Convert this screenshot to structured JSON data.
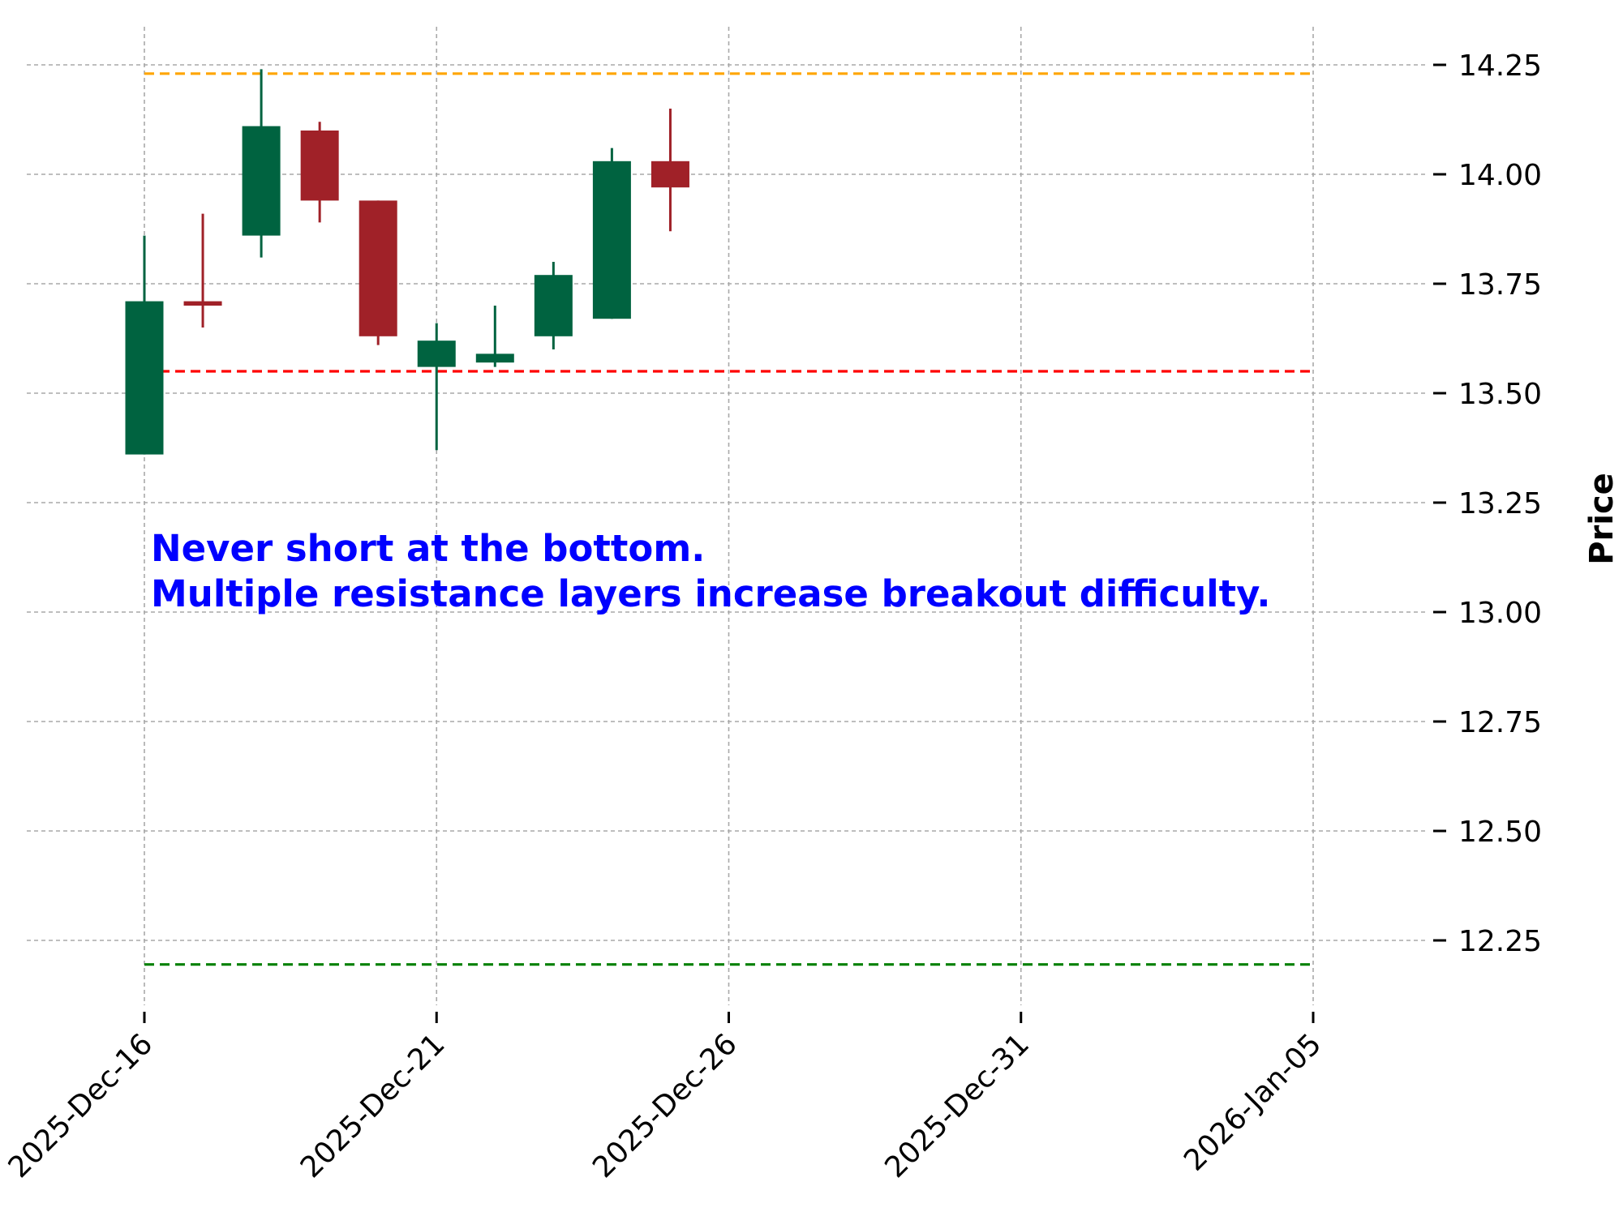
{
  "chart_data": {
    "type": "candlestick",
    "ylabel": "Price",
    "y_axis_side": "right",
    "ylim": [
      12.08,
      14.3
    ],
    "yticks": [
      12.25,
      12.5,
      12.75,
      13.0,
      13.25,
      13.5,
      13.75,
      14.0,
      14.25
    ],
    "ytick_labels": [
      "12.25",
      "12.50",
      "12.75",
      "13.00",
      "13.25",
      "13.50",
      "13.75",
      "14.00",
      "14.25"
    ],
    "x_dates_start": "2025-12-16",
    "x_dates_end": "2026-01-05",
    "x_domain": [
      "2025-12-16",
      "2026-01-05"
    ],
    "xticks": [
      "2025-12-16",
      "2025-12-21",
      "2025-12-26",
      "2025-12-31",
      "2026-01-05"
    ],
    "xtick_labels": [
      "2025-Dec-16",
      "2025-Dec-21",
      "2025-Dec-26",
      "2025-Dec-31",
      "2026-Jan-05"
    ],
    "grid": true,
    "candles": [
      {
        "date": "2025-12-16",
        "open": 13.36,
        "high": 13.86,
        "low": 13.36,
        "close": 13.71
      },
      {
        "date": "2025-12-17",
        "open": 13.71,
        "high": 13.91,
        "low": 13.65,
        "close": 13.7
      },
      {
        "date": "2025-12-18",
        "open": 13.86,
        "high": 14.24,
        "low": 13.81,
        "close": 14.11
      },
      {
        "date": "2025-12-19",
        "open": 14.1,
        "high": 14.12,
        "low": 13.89,
        "close": 13.94
      },
      {
        "date": "2025-12-20",
        "open": 13.94,
        "high": 13.94,
        "low": 13.61,
        "close": 13.63
      },
      {
        "date": "2025-12-21",
        "open": 13.56,
        "high": 13.66,
        "low": 13.37,
        "close": 13.62
      },
      {
        "date": "2025-12-22",
        "open": 13.57,
        "high": 13.7,
        "low": 13.56,
        "close": 13.59
      },
      {
        "date": "2025-12-23",
        "open": 13.63,
        "high": 13.8,
        "low": 13.6,
        "close": 13.77
      },
      {
        "date": "2025-12-24",
        "open": 13.67,
        "high": 14.06,
        "low": 13.67,
        "close": 14.03
      },
      {
        "date": "2025-12-25",
        "open": 14.03,
        "high": 14.15,
        "low": 13.87,
        "close": 13.97
      }
    ],
    "hlines": [
      {
        "value": 14.23,
        "color": "#ffa500"
      },
      {
        "value": 13.55,
        "color": "#ff0000"
      },
      {
        "value": 12.195,
        "color": "#008000"
      }
    ],
    "annotation": {
      "lines": [
        "Never short at the bottom.",
        "Multiple resistance layers increase breakout difficulty."
      ],
      "color": "#0000ff"
    },
    "colors": {
      "up": "#006340",
      "down": "#a02128",
      "grid": "#a9a9a9"
    }
  }
}
